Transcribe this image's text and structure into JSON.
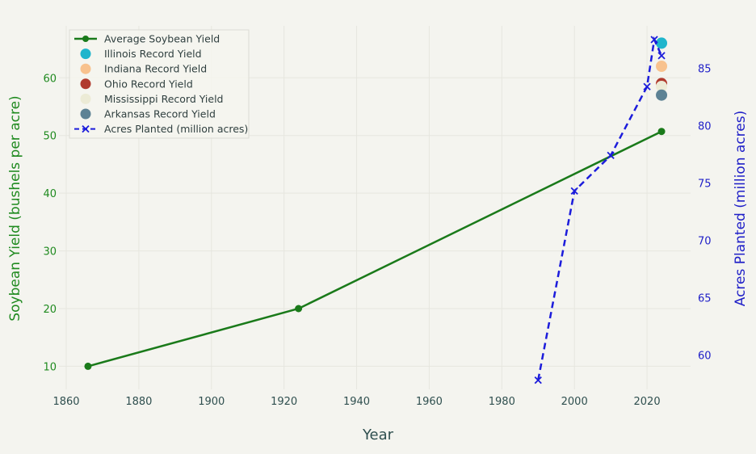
{
  "chart_data": {
    "type": "line",
    "xlabel": "Year",
    "ylabel_left": "Soybean Yield (bushels per acre)",
    "ylabel_right": "Acres Planted (million acres)",
    "x_ticks": [
      1860,
      1880,
      1900,
      1920,
      1940,
      1960,
      1980,
      2000,
      2020
    ],
    "xlim": [
      1858,
      2032
    ],
    "y_left_ticks": [
      10,
      20,
      30,
      40,
      50,
      60
    ],
    "ylim_left": [
      6,
      69
    ],
    "y_right_ticks": [
      60,
      65,
      70,
      75,
      80,
      85
    ],
    "ylim_right": [
      57.0,
      88.7
    ],
    "grid": true,
    "legend_position": "top-left",
    "colors": {
      "yield": "#1a7a1a",
      "acres": "#1c1cdb",
      "left_axis": "#1f8a1f",
      "right_axis": "#2020c8",
      "axis_text": "#2f4f4f",
      "grid": "#e6e6df",
      "background": "#f4f4ef"
    },
    "series": [
      {
        "name": "Average Soybean Yield",
        "axis": "left",
        "style": "line-marker",
        "color": "#1a7a1a",
        "x": [
          1866,
          1924,
          2024
        ],
        "y": [
          10,
          20,
          50.7
        ]
      },
      {
        "name": "Illinois Record Yield",
        "axis": "left",
        "style": "point",
        "color": "#1fb5cc",
        "x": [
          2024
        ],
        "y": [
          66
        ]
      },
      {
        "name": "Indiana Record Yield",
        "axis": "left",
        "style": "point",
        "color": "#f8c28e",
        "x": [
          2024
        ],
        "y": [
          62
        ]
      },
      {
        "name": "Ohio Record Yield",
        "axis": "left",
        "style": "point",
        "color": "#b03a2e",
        "x": [
          2024
        ],
        "y": [
          59
        ]
      },
      {
        "name": "Mississippi Record Yield",
        "axis": "left",
        "style": "point",
        "color": "#ecebd6",
        "x": [
          2024
        ],
        "y": [
          58.5
        ]
      },
      {
        "name": "Arkansas Record Yield",
        "axis": "left",
        "style": "point",
        "color": "#5d8294",
        "x": [
          2024
        ],
        "y": [
          57
        ]
      },
      {
        "name": "Acres Planted (million acres)",
        "axis": "right",
        "style": "dashed-x",
        "color": "#1c1cdb",
        "x": [
          1990,
          2000,
          2010,
          2020,
          2022,
          2024
        ],
        "y": [
          57.8,
          74.3,
          77.4,
          83.4,
          87.5,
          86.1
        ]
      }
    ]
  }
}
